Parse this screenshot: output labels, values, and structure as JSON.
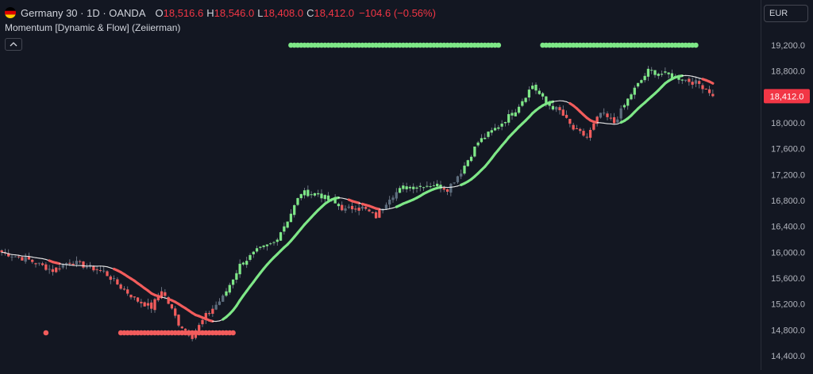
{
  "header": {
    "symbol_title": "Germany 30 · 1D · OANDA",
    "open_label": "O",
    "open_value": "18,516.6",
    "high_label": "H",
    "high_value": "18,546.0",
    "low_label": "L",
    "low_value": "18,408.0",
    "close_label": "C",
    "close_value": "18,412.0",
    "change": "−104.6 (−0.56%)"
  },
  "indicator": {
    "title": "Momentum [Dynamic & Flow] (Zeiierman)",
    "collapse_icon": "chevron-up-icon"
  },
  "currency_selector": "EUR",
  "colors": {
    "background": "#131722",
    "up": "#7ee787",
    "down": "#f25c5c",
    "trend_up": "#7ee787",
    "trend_down": "#f25c5c",
    "neutral_line": "#e8e8e8",
    "wick": "#7f8896",
    "candle_neutral": "#5d6d7e",
    "axis_text": "#b2b5be",
    "last_price_bg": "#f23645"
  },
  "chart_data": {
    "type": "candlestick",
    "title": "Germany 30 · 1D · OANDA",
    "currency": "EUR",
    "y_axis": {
      "ticks": [
        14400,
        14800,
        15200,
        15600,
        16000,
        16400,
        16800,
        17200,
        17600,
        18000,
        18400,
        18800,
        19200
      ],
      "tick_labels": [
        "14,400.0",
        "14,800.0",
        "15,200.0",
        "15,600.0",
        "16,000.0",
        "16,400.0",
        "16,800.0",
        "17,200.0",
        "17,600.0",
        "18,000.0",
        "18,400.0",
        "18,800.0",
        "19,200.0"
      ],
      "ylim": [
        14300,
        19500
      ],
      "position": "right"
    },
    "last_price": {
      "value": 18412.0,
      "label": "18,412.0"
    },
    "ohlc_last": {
      "open": 18516.6,
      "high": 18546.0,
      "low": 18408.0,
      "close": 18412.0,
      "change": -104.6,
      "change_pct": -0.56
    },
    "price_waypoints": [
      [
        0,
        16000
      ],
      [
        8,
        15880
      ],
      [
        15,
        15720
      ],
      [
        20,
        15860
      ],
      [
        25,
        15780
      ],
      [
        30,
        15700
      ],
      [
        35,
        15460
      ],
      [
        40,
        15250
      ],
      [
        44,
        15150
      ],
      [
        47,
        15420
      ],
      [
        52,
        14900
      ],
      [
        56,
        14700
      ],
      [
        60,
        15020
      ],
      [
        65,
        15300
      ],
      [
        70,
        15800
      ],
      [
        75,
        16020
      ],
      [
        80,
        16150
      ],
      [
        84,
        16500
      ],
      [
        88,
        16920
      ],
      [
        93,
        16900
      ],
      [
        97,
        16780
      ],
      [
        101,
        16650
      ],
      [
        105,
        16720
      ],
      [
        110,
        16550
      ],
      [
        114,
        16850
      ],
      [
        118,
        17000
      ],
      [
        122,
        17020
      ],
      [
        127,
        17050
      ],
      [
        131,
        16980
      ],
      [
        135,
        17250
      ],
      [
        140,
        17700
      ],
      [
        146,
        17950
      ],
      [
        151,
        18200
      ],
      [
        156,
        18580
      ],
      [
        160,
        18300
      ],
      [
        164,
        18180
      ],
      [
        168,
        17900
      ],
      [
        172,
        17780
      ],
      [
        176,
        18150
      ],
      [
        180,
        18000
      ],
      [
        185,
        18450
      ],
      [
        190,
        18800
      ],
      [
        195,
        18750
      ],
      [
        200,
        18680
      ],
      [
        205,
        18600
      ],
      [
        209,
        18450
      ]
    ],
    "moving_average": {
      "description": "adaptive momentum flow line",
      "segments": "white where neutral, green during bullish momentum, red during bearish momentum"
    },
    "momentum_dots": [
      {
        "color": "up",
        "start_index": 85,
        "end_index": 146,
        "level": "top"
      },
      {
        "color": "up",
        "start_index": 159,
        "end_index": 202,
        "level": "top"
      },
      {
        "color": "up",
        "start_index": 203,
        "end_index": 204,
        "level": "top"
      },
      {
        "color": "down",
        "start_index": 35,
        "end_index": 47,
        "level": "bottom"
      },
      {
        "color": "down",
        "start_index": 48,
        "end_index": 68,
        "level": "bottom"
      },
      {
        "color": "down",
        "start_index": 13,
        "end_index": 13,
        "level": "bottom"
      }
    ],
    "n_bars": 210,
    "grid": false,
    "legend": "top-left"
  }
}
